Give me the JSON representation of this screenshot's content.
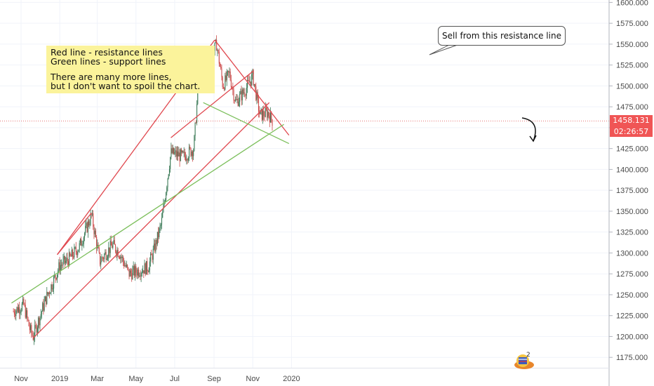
{
  "notes": {
    "line1": "Red line - resistance lines",
    "line2": "Green lines - support lines",
    "line3": "There are many more lines,",
    "line4": "but I don't want to spoil the chart."
  },
  "callout": "Sell from this resistance line",
  "price_label": "1458.131",
  "timer_label": "02:26:57",
  "logo_badge": "2",
  "colors": {
    "resistance": "#e0484f",
    "support": "#7cbf5c",
    "candle_up": "#3b7a57",
    "candle_down": "#cc4a4a",
    "grid": "#f0f3fa",
    "price_tag": "#f05555"
  },
  "chart_data": {
    "type": "candlestick",
    "x_ticks": [
      "Nov",
      "2019",
      "Mar",
      "May",
      "Jul",
      "Sep",
      "Nov",
      "2020"
    ],
    "y_ticks": [
      1175,
      1200,
      1225,
      1250,
      1275,
      1300,
      1325,
      1350,
      1375,
      1400,
      1425,
      1450,
      1475,
      1500,
      1525,
      1550,
      1575,
      1600
    ],
    "ylim": [
      1165,
      1603
    ],
    "current_price": 1458.131,
    "close_path": [
      {
        "x": "2018-10-20",
        "y": 1230
      },
      {
        "x": "2018-11-05",
        "y": 1238
      },
      {
        "x": "2018-11-15",
        "y": 1208
      },
      {
        "x": "2018-11-20",
        "y": 1200
      },
      {
        "x": "2018-12-10",
        "y": 1245
      },
      {
        "x": "2019-01-01",
        "y": 1285
      },
      {
        "x": "2019-01-15",
        "y": 1292
      },
      {
        "x": "2019-02-01",
        "y": 1308
      },
      {
        "x": "2019-02-20",
        "y": 1345
      },
      {
        "x": "2019-03-05",
        "y": 1290
      },
      {
        "x": "2019-03-25",
        "y": 1310
      },
      {
        "x": "2019-04-05",
        "y": 1300
      },
      {
        "x": "2019-04-20",
        "y": 1275
      },
      {
        "x": "2019-05-20",
        "y": 1283
      },
      {
        "x": "2019-05-30",
        "y": 1305
      },
      {
        "x": "2019-06-10",
        "y": 1335
      },
      {
        "x": "2019-06-25",
        "y": 1420
      },
      {
        "x": "2019-07-15",
        "y": 1415
      },
      {
        "x": "2019-07-31",
        "y": 1425
      },
      {
        "x": "2019-08-08",
        "y": 1510
      },
      {
        "x": "2019-08-25",
        "y": 1530
      },
      {
        "x": "2019-09-05",
        "y": 1550
      },
      {
        "x": "2019-09-15",
        "y": 1500
      },
      {
        "x": "2019-09-25",
        "y": 1515
      },
      {
        "x": "2019-10-05",
        "y": 1480
      },
      {
        "x": "2019-10-20",
        "y": 1495
      },
      {
        "x": "2019-11-01",
        "y": 1512
      },
      {
        "x": "2019-11-12",
        "y": 1465
      },
      {
        "x": "2019-11-25",
        "y": 1468
      },
      {
        "x": "2019-12-02",
        "y": 1458
      }
    ],
    "trendlines": [
      {
        "kind": "resistance",
        "from": {
          "x": "2018-12-28",
          "y": 1298
        },
        "to": {
          "x": "2019-09-02",
          "y": 1555
        }
      },
      {
        "kind": "resistance",
        "from": {
          "x": "2018-12-28",
          "y": 1298
        },
        "to": {
          "x": "2019-02-20",
          "y": 1348
        }
      },
      {
        "kind": "resistance",
        "from": {
          "x": "2019-06-25",
          "y": 1438
        },
        "to": {
          "x": "2019-11-02",
          "y": 1518
        }
      },
      {
        "kind": "resistance",
        "from": {
          "x": "2019-09-02",
          "y": 1555
        },
        "to": {
          "x": "2019-12-28",
          "y": 1441
        }
      },
      {
        "kind": "resistance",
        "from": {
          "x": "2018-11-20",
          "y": 1198
        },
        "to": {
          "x": "2019-11-27",
          "y": 1480
        }
      },
      {
        "kind": "support",
        "from": {
          "x": "2018-10-17",
          "y": 1240
        },
        "to": {
          "x": "2019-12-20",
          "y": 1454
        }
      },
      {
        "kind": "support",
        "from": {
          "x": "2019-08-15",
          "y": 1480
        },
        "to": {
          "x": "2019-12-28",
          "y": 1431
        }
      }
    ]
  }
}
